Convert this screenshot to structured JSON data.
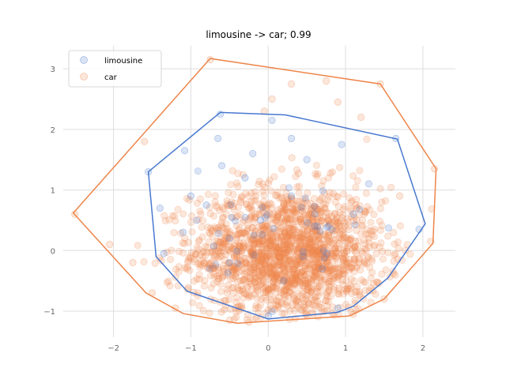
{
  "chart_data": {
    "type": "scatter",
    "title": "limousine -> car; 0.99",
    "xlabel": "",
    "ylabel": "",
    "xlim": [
      -2.65,
      2.42
    ],
    "ylim": [
      -1.43,
      3.38
    ],
    "xticks": [
      -2,
      -1,
      0,
      1,
      2
    ],
    "yticks": [
      -1,
      0,
      1,
      2,
      3
    ],
    "grid": true,
    "legend_position": "top-left",
    "series": [
      {
        "name": "limousine",
        "color": "#4878cf",
        "points": [
          [
            -1.55,
            1.3
          ],
          [
            -1.4,
            0.7
          ],
          [
            -0.65,
            1.85
          ],
          [
            -0.62,
            2.25
          ],
          [
            -1.08,
            1.65
          ],
          [
            0.05,
            2.15
          ],
          [
            1.65,
            1.85
          ],
          [
            0.3,
            1.85
          ],
          [
            0.95,
            1.75
          ],
          [
            -0.8,
            0.75
          ],
          [
            -1.1,
            0.3
          ],
          [
            -1.0,
            0.9
          ],
          [
            0.5,
            1.5
          ],
          [
            -0.3,
            1.2
          ],
          [
            0.6,
            0.4
          ],
          [
            -0.5,
            -0.2
          ],
          [
            0.2,
            -0.5
          ],
          [
            1.1,
            0.6
          ],
          [
            0.9,
            -0.95
          ],
          [
            0.0,
            -1.08
          ],
          [
            -0.2,
            1.6
          ],
          [
            -0.5,
            0.2
          ],
          [
            0.3,
            0.9
          ],
          [
            0.7,
            -0.3
          ],
          [
            -0.6,
            1.4
          ],
          [
            1.3,
            1.1
          ],
          [
            -0.1,
            0.5
          ],
          [
            0.45,
            -0.1
          ],
          [
            -1.35,
            -0.05
          ],
          [
            1.95,
            0.35
          ]
        ],
        "hull": [
          [
            -1.55,
            1.3
          ],
          [
            -0.62,
            2.28
          ],
          [
            0.22,
            2.24
          ],
          [
            1.67,
            1.84
          ],
          [
            2.03,
            0.44
          ],
          [
            1.55,
            -0.45
          ],
          [
            1.1,
            -0.92
          ],
          [
            0.9,
            -1.02
          ],
          [
            0.0,
            -1.13
          ],
          [
            -1.05,
            -0.67
          ],
          [
            -1.45,
            -0.1
          ]
        ]
      },
      {
        "name": "car",
        "color": "#ee854a",
        "points": [
          [
            -2.5,
            0.6
          ],
          [
            -0.75,
            3.15
          ],
          [
            1.45,
            2.75
          ],
          [
            2.15,
            1.35
          ],
          [
            -1.6,
            1.8
          ],
          [
            -1.2,
            -0.95
          ],
          [
            -0.5,
            -1.15
          ],
          [
            1.1,
            -1.05
          ],
          [
            1.5,
            -0.8
          ],
          [
            2.1,
            0.15
          ],
          [
            0.3,
            2.75
          ],
          [
            0.75,
            2.8
          ],
          [
            -2.05,
            0.1
          ],
          [
            -1.75,
            -0.2
          ],
          [
            -1.5,
            -0.7
          ],
          [
            1.7,
            0.9
          ],
          [
            0.05,
            2.5
          ],
          [
            -0.05,
            2.3
          ],
          [
            1.2,
            2.2
          ],
          [
            0.9,
            2.45
          ]
        ],
        "hull": [
          [
            -2.52,
            0.62
          ],
          [
            -0.75,
            3.17
          ],
          [
            1.45,
            2.75
          ],
          [
            2.17,
            1.35
          ],
          [
            2.13,
            0.12
          ],
          [
            1.5,
            -0.8
          ],
          [
            1.05,
            -1.08
          ],
          [
            -0.4,
            -1.2
          ],
          [
            -1.1,
            -1.04
          ],
          [
            -1.58,
            -0.7
          ]
        ]
      }
    ],
    "cloud": {
      "car": {
        "count": 1800,
        "x_center": 0.25,
        "x_spread": 0.62,
        "y_center": -0.05,
        "y_spread": 0.55
      },
      "limousine": {
        "count": 40,
        "x_center": 0.2,
        "x_spread": 0.55,
        "y_center": 0.2,
        "y_spread": 0.6
      }
    }
  }
}
